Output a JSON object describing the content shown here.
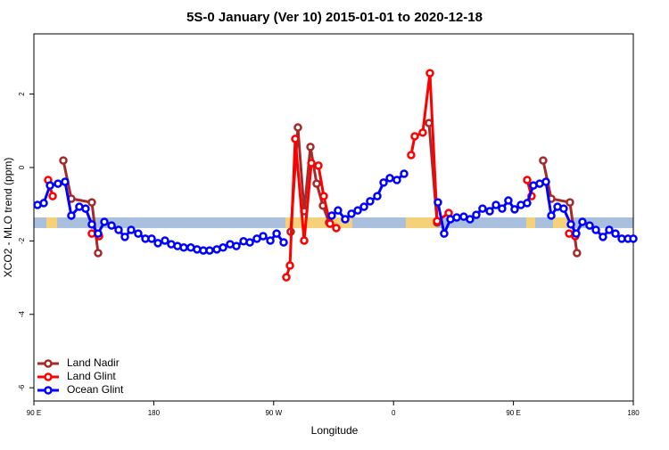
{
  "chart_data": {
    "type": "line",
    "title": "5S-0 January (Ver 10)   2015-01-01 to 2020-12-18",
    "x_label": "Longitude",
    "y_label": "XCO2 - MLO trend (ppm)",
    "xlim": [
      90,
      540
    ],
    "ylim": [
      -6.36,
      3.64
    ],
    "xticks": [
      {
        "value": 90,
        "label": "90 E"
      },
      {
        "value": 180,
        "label": "180"
      },
      {
        "value": 270,
        "label": "90 W"
      },
      {
        "value": 360,
        "label": "0"
      },
      {
        "value": 450,
        "label": "90 E"
      },
      {
        "value": 540,
        "label": "180"
      }
    ],
    "yticks": [
      -6,
      -4,
      -2,
      0,
      2
    ],
    "band": {
      "y": [
        -1.65,
        -1.36
      ],
      "color": "#a8bfdd",
      "land_color": "#f5d27a",
      "land_x": [
        [
          99.4,
          107.4
        ],
        [
          278.8,
          329
        ],
        [
          369.2,
          392.7
        ],
        [
          459.6,
          466.3
        ],
        [
          479.7,
          493.1
        ]
      ]
    },
    "legend": "bottom-left",
    "series": [
      {
        "name": "Land Nadir",
        "color": "#a52a2a",
        "x": [
          112.1,
          118.1,
          133.5,
          138.2,
          null,
          282.8,
          288.2,
          292.9,
          297.6,
          302.3,
          307.0,
          311.6,
          null,
          386.6,
          392.7,
          null,
          472.3,
          478.4,
          492.4,
          497.7
        ],
        "values": [
          0.19,
          -0.85,
          -0.95,
          -2.33,
          null,
          -1.75,
          1.09,
          -1.19,
          0.56,
          -0.44,
          -1.04,
          -1.5,
          null,
          1.21,
          -1.5,
          null,
          0.19,
          -0.85,
          -0.95,
          -2.33
        ]
      },
      {
        "name": "Land Glint",
        "color": "#ff0000",
        "x": [
          100.7,
          104.1,
          null,
          133.5,
          138.9,
          null,
          279.5,
          282.2,
          286.2,
          292.9,
          298.3,
          303.6,
          307.6,
          312.3,
          317.0,
          null,
          373.2,
          375.9,
          381.9,
          387.3,
          392.7,
          401.4,
          null,
          460.3,
          463.6,
          null,
          491.8,
          496.4
        ],
        "values": [
          -0.34,
          -0.78,
          null,
          -1.8,
          -1.87,
          null,
          -2.99,
          -2.67,
          0.78,
          -1.99,
          0.12,
          0.05,
          -0.78,
          -1.53,
          -1.65,
          null,
          0.34,
          0.85,
          0.95,
          2.57,
          -1.46,
          -1.24,
          null,
          -0.34,
          -0.78,
          null,
          -1.8,
          -1.87
        ]
      },
      {
        "name": "Ocean Glint",
        "color": "#0000ff",
        "x": [
          92.7,
          97.4,
          102.1,
          108.1,
          113.4,
          118.1,
          124.1,
          128.8,
          133.5,
          138.2,
          142.9,
          148.3,
          153.6,
          158.3,
          163.0,
          168.3,
          173.7,
          178.4,
          183.1,
          188.4,
          193.1,
          197.8,
          202.5,
          207.8,
          212.5,
          217.2,
          221.9,
          227.3,
          232.0,
          237.3,
          242.0,
          247.4,
          252.1,
          257.4,
          262.1,
          267.5,
          272.2,
          277.5,
          null,
          313.6,
          318.3,
          323.7,
          328.4,
          333.1,
          337.8,
          342.4,
          347.8,
          352.5,
          357.2,
          362.5,
          367.9,
          null,
          393.3,
          398.0,
          402.7,
          407.4,
          412.7,
          417.4,
          422.1,
          426.8,
          432.2,
          436.9,
          441.5,
          446.2,
          450.9,
          455.6,
          460.3,
          465.0,
          469.7,
          474.4,
          478.4,
          483.1,
          487.7,
          493.1,
          497.1,
          501.8,
          507.2,
          511.9,
          517.2,
          521.9,
          526.6,
          531.3,
          536.0,
          540.0
        ],
        "values": [
          -1.02,
          -0.97,
          -0.49,
          -0.44,
          -0.39,
          -1.31,
          -1.07,
          -1.12,
          -1.55,
          -1.8,
          -1.48,
          -1.58,
          -1.7,
          -1.89,
          -1.7,
          -1.8,
          -1.94,
          -1.94,
          -2.06,
          -1.99,
          -2.09,
          -2.14,
          -2.18,
          -2.18,
          -2.23,
          -2.26,
          -2.26,
          -2.23,
          -2.18,
          -2.09,
          -2.14,
          -2.01,
          -2.04,
          -1.94,
          -1.87,
          -1.99,
          -1.8,
          -2.04,
          null,
          -1.31,
          -1.17,
          -1.41,
          -1.26,
          -1.17,
          -1.07,
          -0.92,
          -0.78,
          -0.41,
          -0.29,
          -0.34,
          -0.17,
          null,
          -0.95,
          -1.8,
          -1.41,
          -1.36,
          -1.34,
          -1.41,
          -1.29,
          -1.12,
          -1.19,
          -1.02,
          -1.12,
          -0.9,
          -1.14,
          -1.02,
          -0.97,
          -0.49,
          -0.44,
          -0.39,
          -1.31,
          -1.07,
          -1.12,
          -1.55,
          -1.8,
          -1.48,
          -1.58,
          -1.7,
          -1.89,
          -1.7,
          -1.8,
          -1.94,
          -1.94,
          -1.94
        ]
      }
    ]
  }
}
